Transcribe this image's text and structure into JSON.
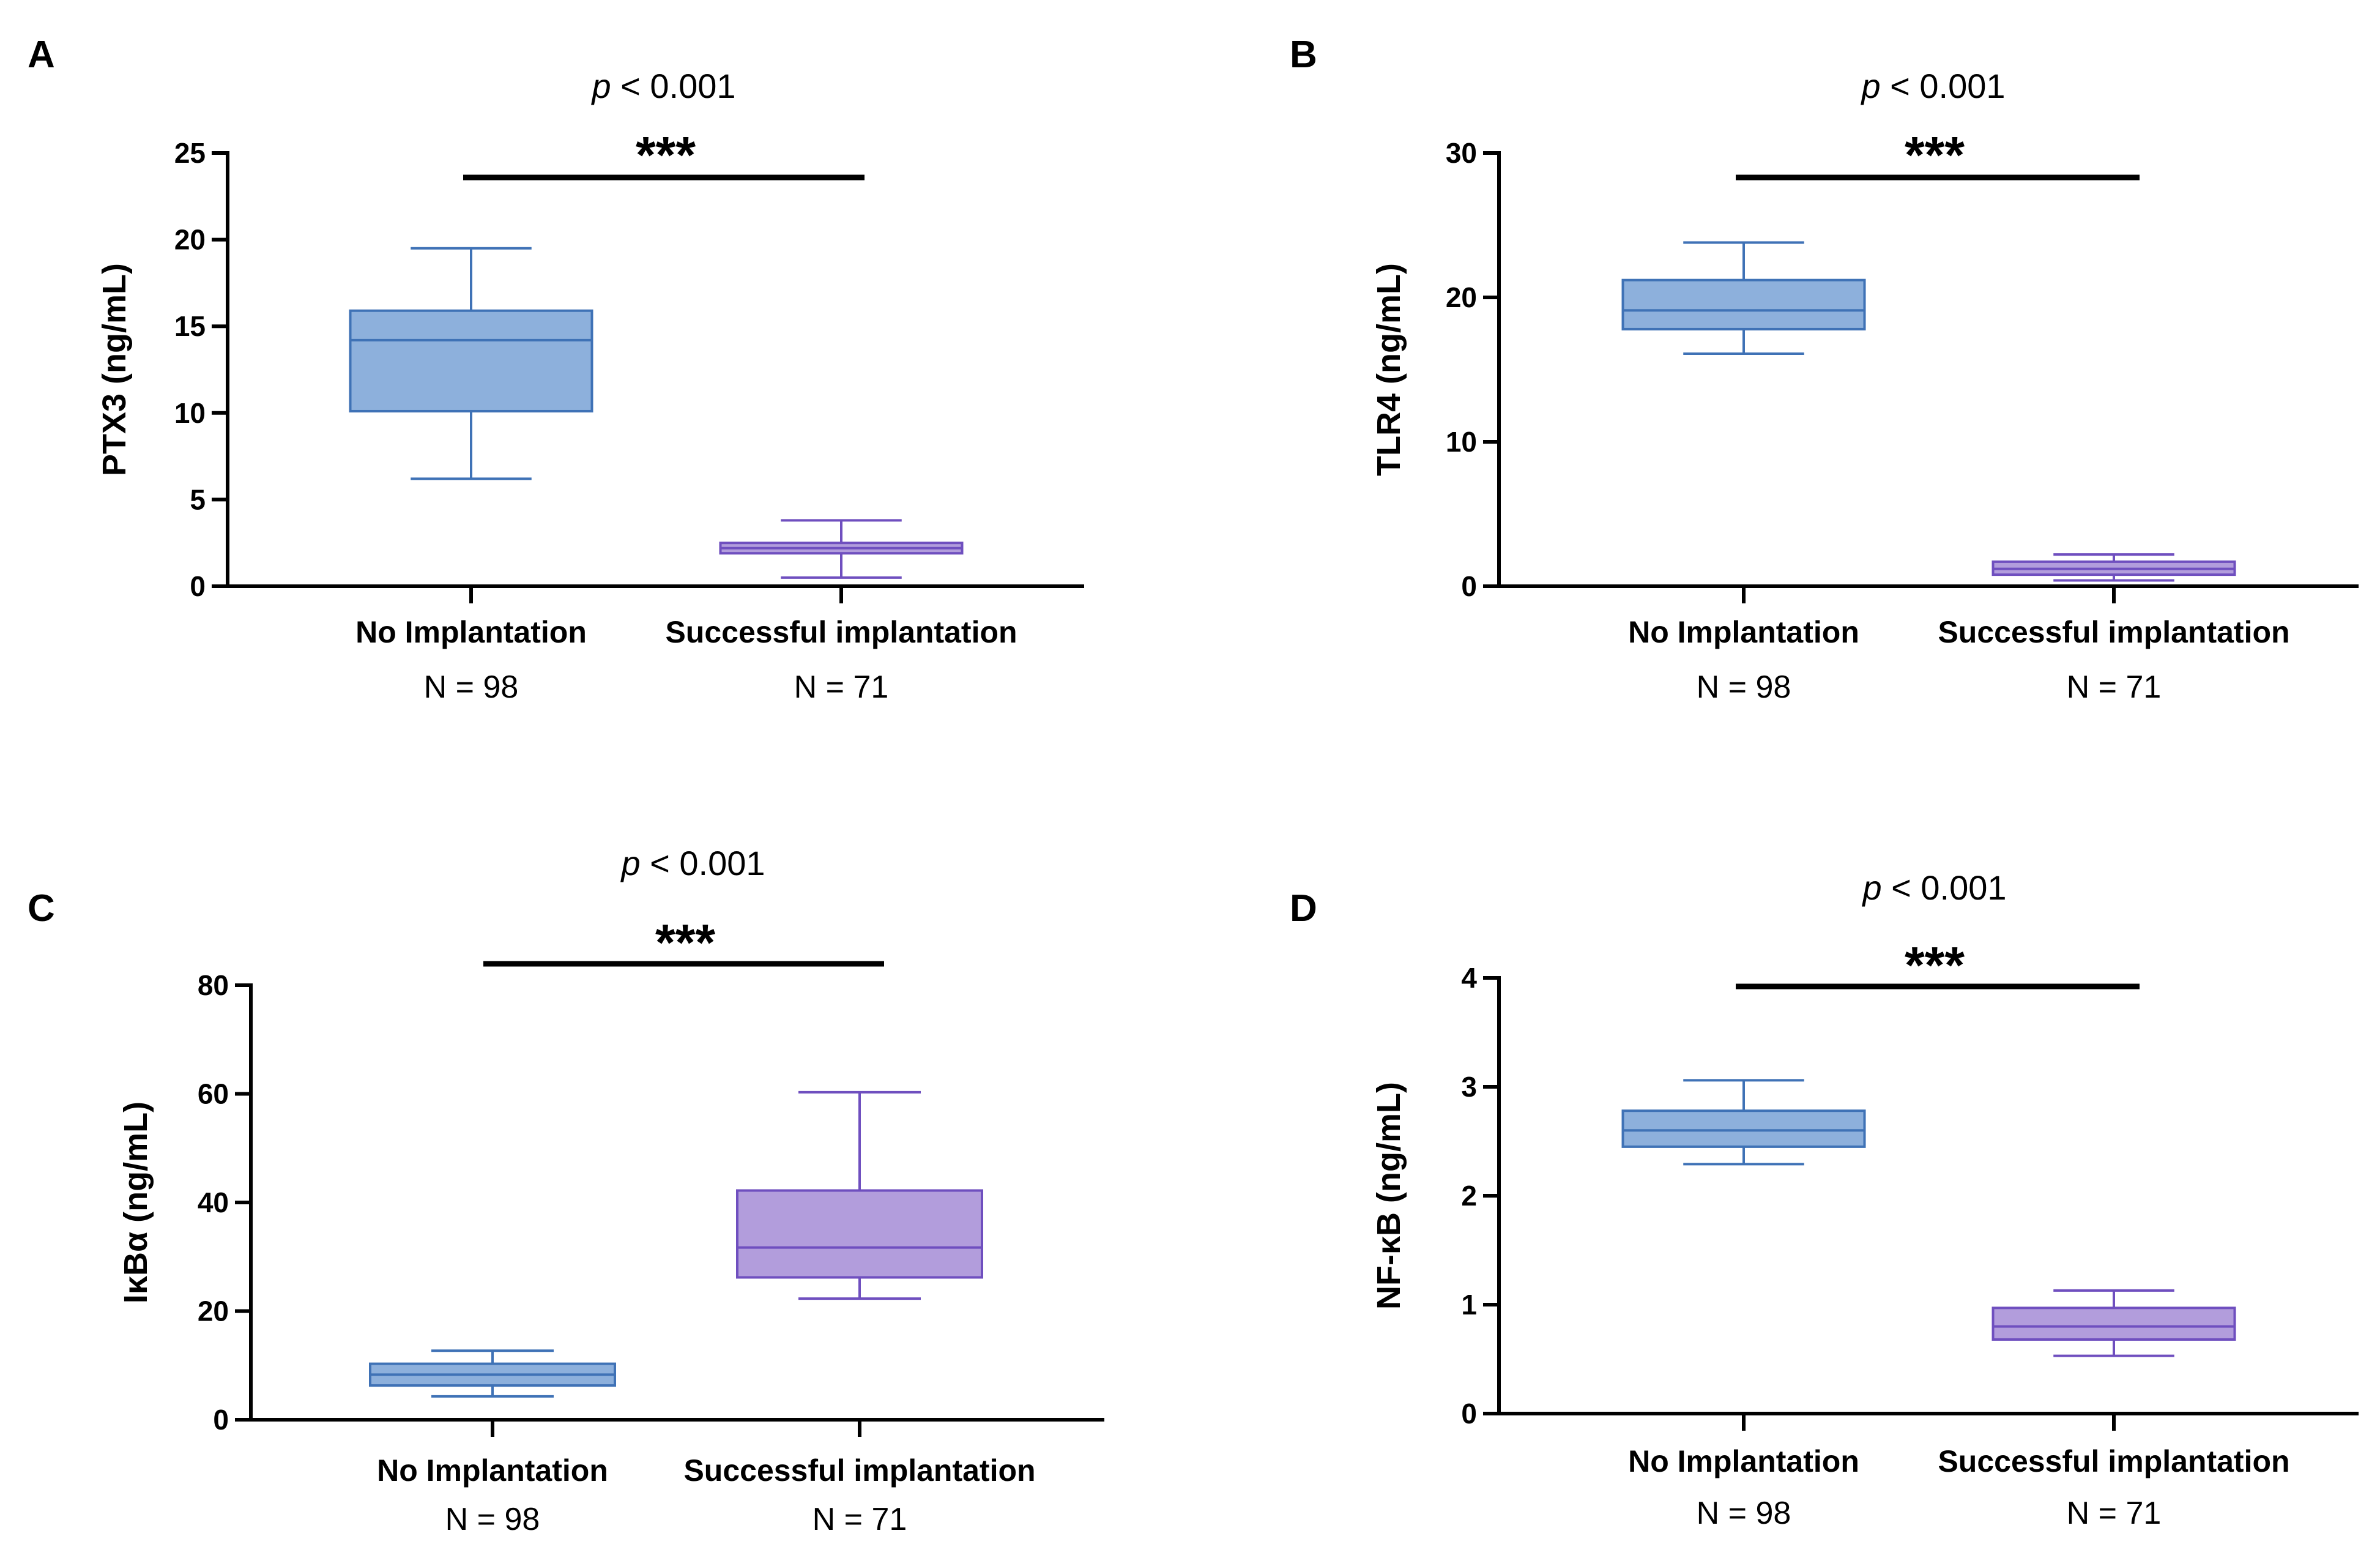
{
  "chart_data": [
    {
      "type": "box",
      "panel": "A",
      "ylabel": "PTX3 (ng/mL)",
      "ylim": [
        0,
        25
      ],
      "yticks": [
        0,
        5,
        10,
        15,
        20,
        25
      ],
      "pvalue": {
        "p": "p",
        "rest": " < 0.001"
      },
      "significance": "***",
      "categories": [
        "No Implantation",
        "Successful implantation"
      ],
      "n_labels": [
        "N = 98",
        "N = 71"
      ],
      "boxes": [
        {
          "name": "No Implantation",
          "min": 6.2,
          "q1": 10.1,
          "median": 14.2,
          "q3": 15.9,
          "max": 19.5
        },
        {
          "name": "Successful implantation",
          "min": 0.5,
          "q1": 1.9,
          "median": 2.2,
          "q3": 2.5,
          "max": 3.8
        }
      ]
    },
    {
      "type": "box",
      "panel": "B",
      "ylabel": "TLR4 (ng/mL)",
      "ylim": [
        0,
        30
      ],
      "yticks": [
        0,
        10,
        20,
        30
      ],
      "pvalue": {
        "p": "p",
        "rest": " < 0.001"
      },
      "significance": "***",
      "categories": [
        "No Implantation",
        "Successful implantation"
      ],
      "n_labels": [
        "N = 98",
        "N = 71"
      ],
      "boxes": [
        {
          "name": "No Implantation",
          "min": 16.1,
          "q1": 17.8,
          "median": 19.1,
          "q3": 21.2,
          "max": 23.8
        },
        {
          "name": "Successful implantation",
          "min": 0.4,
          "q1": 0.8,
          "median": 1.2,
          "q3": 1.7,
          "max": 2.2
        }
      ]
    },
    {
      "type": "box",
      "panel": "C",
      "ylabel": "IκBα (ng/mL)",
      "ylim": [
        0,
        80
      ],
      "yticks": [
        0,
        20,
        40,
        60,
        80
      ],
      "pvalue": {
        "p": "p",
        "rest": " < 0.001"
      },
      "significance": "***",
      "categories": [
        "No Implantation",
        "Successful implantation"
      ],
      "n_labels": [
        "N = 98",
        "N = 71"
      ],
      "boxes": [
        {
          "name": "No Implantation",
          "min": 4.3,
          "q1": 6.3,
          "median": 8.3,
          "q3": 10.3,
          "max": 12.7
        },
        {
          "name": "Successful implantation",
          "min": 22.3,
          "q1": 26.2,
          "median": 31.7,
          "q3": 42.2,
          "max": 60.3
        }
      ]
    },
    {
      "type": "box",
      "panel": "D",
      "ylabel": "NF-κB (ng/mL)",
      "ylim": [
        0,
        4
      ],
      "yticks": [
        0,
        1,
        2,
        3,
        4
      ],
      "pvalue": {
        "p": "p",
        "rest": " < 0.001"
      },
      "significance": "***",
      "categories": [
        "No Implantation",
        "Successful implantation"
      ],
      "n_labels": [
        "N = 98",
        "N = 71"
      ],
      "boxes": [
        {
          "name": "No Implantation",
          "min": 2.29,
          "q1": 2.45,
          "median": 2.6,
          "q3": 2.78,
          "max": 3.06
        },
        {
          "name": "Successful implantation",
          "min": 0.53,
          "q1": 0.68,
          "median": 0.8,
          "q3": 0.97,
          "max": 1.13
        }
      ]
    }
  ],
  "colors": {
    "group1_fill": "#8db0dc",
    "group1_line": "#3f72b6",
    "group2_fill": "#b29ddc",
    "group2_line": "#6f4fbf",
    "axis": "#000000"
  }
}
